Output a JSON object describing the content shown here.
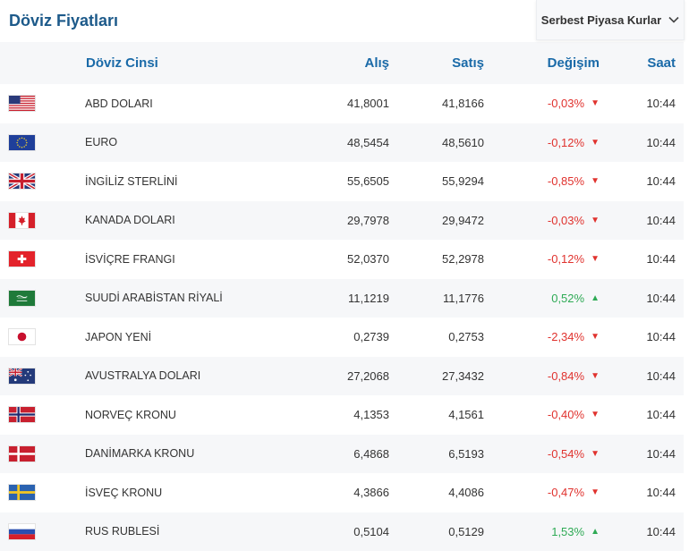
{
  "header": {
    "title": "Döviz Fiyatları",
    "market_select": "Serbest Piyasa Kurlar"
  },
  "table": {
    "columns": {
      "name": "Döviz Cinsi",
      "buy": "Alış",
      "sell": "Satış",
      "change": "Değişim",
      "time": "Saat"
    },
    "rows": [
      {
        "flag": "flag-usa-icon",
        "name": "ABD DOLARI",
        "buy": "41,8001",
        "sell": "41,8166",
        "change": "-0,03%",
        "dir": "down",
        "time": "10:44"
      },
      {
        "flag": "flag-eu-icon",
        "name": "EURO",
        "buy": "48,5454",
        "sell": "48,5610",
        "change": "-0,12%",
        "dir": "down",
        "time": "10:44"
      },
      {
        "flag": "flag-uk-icon",
        "name": "İNGİLİZ STERLİNİ",
        "buy": "55,6505",
        "sell": "55,9294",
        "change": "-0,85%",
        "dir": "down",
        "time": "10:44"
      },
      {
        "flag": "flag-canada-icon",
        "name": "KANADA DOLARI",
        "buy": "29,7978",
        "sell": "29,9472",
        "change": "-0,03%",
        "dir": "down",
        "time": "10:44"
      },
      {
        "flag": "flag-switzerland-icon",
        "name": "İSVİÇRE FRANGI",
        "buy": "52,0370",
        "sell": "52,2978",
        "change": "-0,12%",
        "dir": "down",
        "time": "10:44"
      },
      {
        "flag": "flag-saudi-icon",
        "name": "SUUDİ ARABİSTAN RİYALİ",
        "buy": "11,1219",
        "sell": "11,1776",
        "change": "0,52%",
        "dir": "up",
        "time": "10:44"
      },
      {
        "flag": "flag-japan-icon",
        "name": "JAPON YENİ",
        "buy": "0,2739",
        "sell": "0,2753",
        "change": "-2,34%",
        "dir": "down",
        "time": "10:44"
      },
      {
        "flag": "flag-australia-icon",
        "name": "AVUSTRALYA DOLARI",
        "buy": "27,2068",
        "sell": "27,3432",
        "change": "-0,84%",
        "dir": "down",
        "time": "10:44"
      },
      {
        "flag": "flag-norway-icon",
        "name": "NORVEÇ KRONU",
        "buy": "4,1353",
        "sell": "4,1561",
        "change": "-0,40%",
        "dir": "down",
        "time": "10:44"
      },
      {
        "flag": "flag-denmark-icon",
        "name": "DANİMARKA KRONU",
        "buy": "6,4868",
        "sell": "6,5193",
        "change": "-0,54%",
        "dir": "down",
        "time": "10:44"
      },
      {
        "flag": "flag-sweden-icon",
        "name": "İSVEÇ KRONU",
        "buy": "4,3866",
        "sell": "4,4086",
        "change": "-0,47%",
        "dir": "down",
        "time": "10:44"
      },
      {
        "flag": "flag-russia-icon",
        "name": "RUS RUBLESİ",
        "buy": "0,5104",
        "sell": "0,5129",
        "change": "1,53%",
        "dir": "up",
        "time": "10:44"
      }
    ]
  },
  "colors": {
    "title": "#1d5a8a",
    "header_text": "#1a6aa8",
    "down": "#e0322e",
    "up": "#2eaa55"
  }
}
